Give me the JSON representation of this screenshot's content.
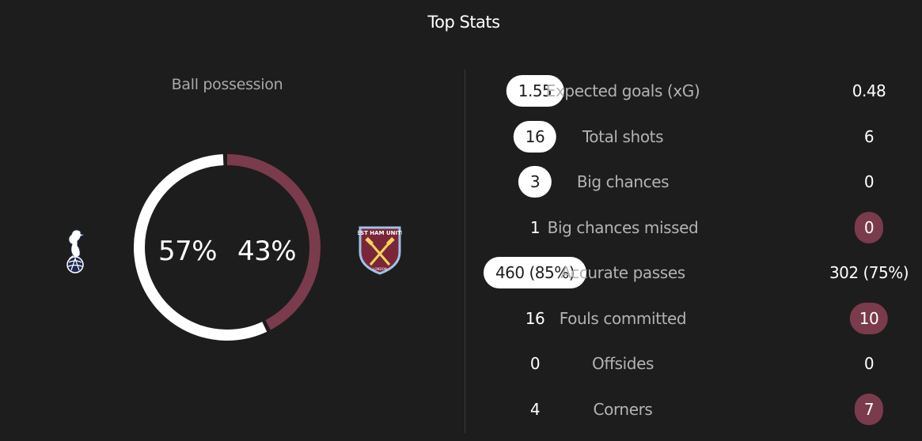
{
  "title": "Top Stats",
  "possession": {
    "label": "Ball possession",
    "home_pct": 57,
    "away_pct": 43,
    "home_text": "57%",
    "away_text": "43%",
    "home_color": "#ffffff",
    "away_color": "#7a3b4c"
  },
  "teams": {
    "home": {
      "crest_icon": "tottenham-hotspur-crest-icon"
    },
    "away": {
      "crest_icon": "west-ham-united-crest-icon",
      "crest_text": "WEST HAM UNITED",
      "crest_subtext": "LONDON"
    }
  },
  "colors": {
    "background": "#1d1d1d",
    "home_highlight": "#ffffff",
    "away_highlight": "#7a3b4c"
  },
  "stats": [
    {
      "label": "Expected goals (xG)",
      "home": "1.55",
      "away": "0.48",
      "highlight": "home"
    },
    {
      "label": "Total shots",
      "home": "16",
      "away": "6",
      "highlight": "home"
    },
    {
      "label": "Big chances",
      "home": "3",
      "away": "0",
      "highlight": "home"
    },
    {
      "label": "Big chances missed",
      "home": "1",
      "away": "0",
      "highlight": "away"
    },
    {
      "label": "Accurate passes",
      "home": "460 (85%)",
      "away": "302 (75%)",
      "highlight": "home"
    },
    {
      "label": "Fouls committed",
      "home": "16",
      "away": "10",
      "highlight": "away"
    },
    {
      "label": "Offsides",
      "home": "0",
      "away": "0",
      "highlight": "none"
    },
    {
      "label": "Corners",
      "home": "4",
      "away": "7",
      "highlight": "away"
    }
  ]
}
